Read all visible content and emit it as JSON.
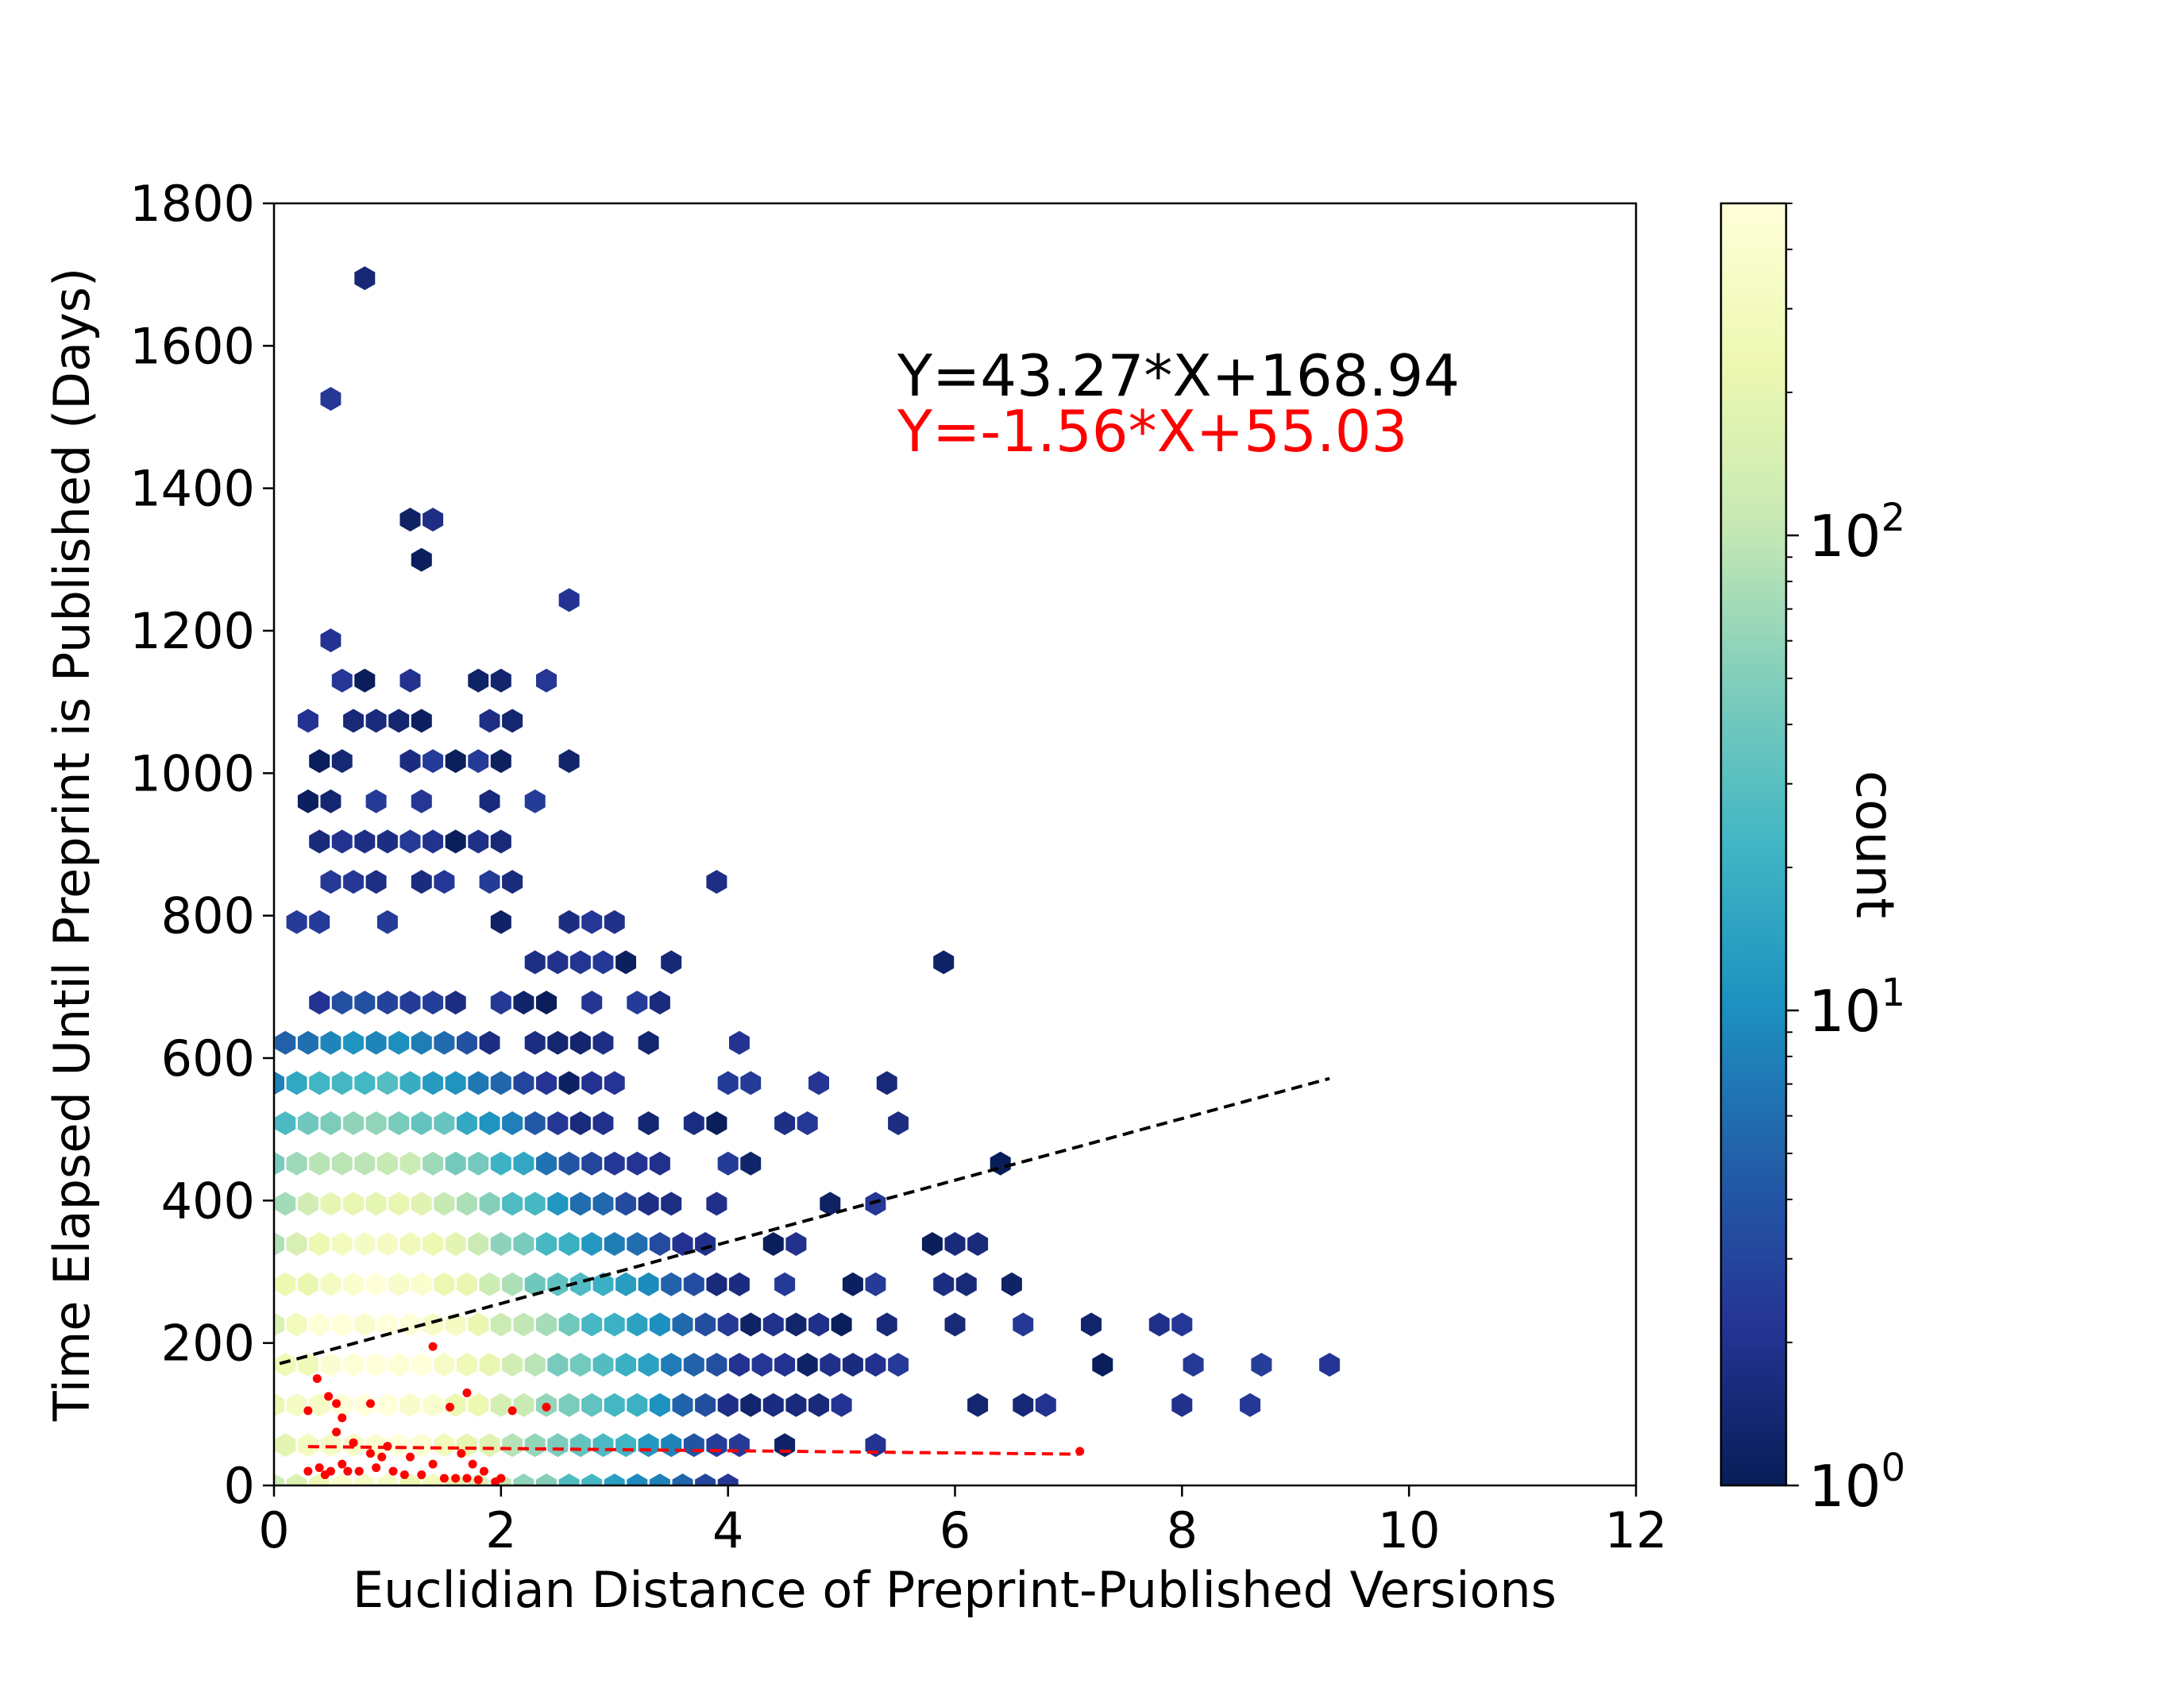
{
  "chart_data": {
    "type": "hexbin",
    "title": "",
    "xlabel": "Euclidian Distance of Preprint-Published Versions",
    "ylabel": "Time Elapsed Until Preprint is Published (Days)",
    "xlim": [
      0,
      12
    ],
    "ylim": [
      0,
      1800
    ],
    "xticks": [
      "0",
      "2",
      "4",
      "6",
      "8",
      "10",
      "12"
    ],
    "yticks": [
      "0",
      "200",
      "400",
      "600",
      "800",
      "1000",
      "1200",
      "1400",
      "1600",
      "1800"
    ],
    "grid": false,
    "colorbar": {
      "label": "count",
      "scale": "log",
      "range": [
        1,
        500
      ],
      "colormap": "YlGnBu_r",
      "stops": [
        "#081d58",
        "#253494",
        "#225ea8",
        "#1d91c0",
        "#41b6c4",
        "#7fcdbb",
        "#c7e9b4",
        "#edf8b1",
        "#ffffd9"
      ],
      "ticks": [
        {
          "base": "10",
          "exp": "0",
          "value": 1
        },
        {
          "base": "10",
          "exp": "1",
          "value": 10
        },
        {
          "base": "10",
          "exp": "2",
          "value": 100
        }
      ]
    },
    "annotations": [
      {
        "text": "Y=43.27*X+168.94",
        "color": "#000000"
      },
      {
        "text": "Y=-1.56*X+55.03",
        "color": "#ff0000"
      }
    ],
    "fit_lines": [
      {
        "slope": 43.27,
        "intercept": 168.94,
        "x_range": [
          0.05,
          9.3
        ],
        "color": "#000000",
        "style": "dashed"
      },
      {
        "slope": -1.56,
        "intercept": 55.03,
        "x_range": [
          0.3,
          7.1
        ],
        "color": "#ff0000",
        "style": "dashed"
      }
    ],
    "density_clusters": [
      {
        "center": [
          0.85,
          170
        ],
        "spread": [
          0.6,
          160
        ],
        "peak": 500
      },
      {
        "center": [
          1.6,
          130
        ],
        "spread": [
          0.9,
          140
        ],
        "peak": 80
      }
    ],
    "scatter_series": [
      {
        "color": "#ff0000",
        "points": [
          [
            0.38,
            150
          ],
          [
            0.48,
            125
          ],
          [
            0.55,
            115
          ],
          [
            0.85,
            115
          ],
          [
            1.4,
            195
          ],
          [
            1.55,
            110
          ],
          [
            1.7,
            130
          ],
          [
            2.1,
            105
          ],
          [
            2.4,
            110
          ],
          [
            0.6,
            95
          ],
          [
            0.3,
            105
          ],
          [
            0.55,
            75
          ],
          [
            0.7,
            60
          ],
          [
            0.85,
            45
          ],
          [
            1.0,
            55
          ],
          [
            0.95,
            40
          ],
          [
            1.2,
            40
          ],
          [
            1.4,
            30
          ],
          [
            1.65,
            45
          ],
          [
            1.75,
            30
          ],
          [
            1.85,
            20
          ],
          [
            0.3,
            20
          ],
          [
            0.4,
            25
          ],
          [
            0.45,
            15
          ],
          [
            0.5,
            20
          ],
          [
            0.6,
            30
          ],
          [
            0.65,
            20
          ],
          [
            0.75,
            20
          ],
          [
            0.9,
            25
          ],
          [
            1.05,
            20
          ],
          [
            1.15,
            15
          ],
          [
            1.3,
            15
          ],
          [
            1.5,
            10
          ],
          [
            1.6,
            10
          ],
          [
            1.7,
            10
          ],
          [
            1.8,
            8
          ],
          [
            1.95,
            5
          ],
          [
            2.0,
            10
          ],
          [
            7.1,
            48
          ]
        ]
      }
    ],
    "sparse_bins": [
      [
        0.8,
        1690
      ],
      [
        0.5,
        1540
      ],
      [
        1.2,
        1360
      ],
      [
        1.4,
        1360
      ],
      [
        1.1,
        1330
      ],
      [
        1.25,
        1300
      ],
      [
        2.65,
        1270
      ],
      [
        0.42,
        1210
      ],
      [
        0.5,
        1180
      ],
      [
        0.8,
        1150
      ],
      [
        1.8,
        1150
      ],
      [
        1.95,
        1150
      ],
      [
        0.25,
        1090
      ],
      [
        0.5,
        1120
      ],
      [
        1.1,
        1120
      ],
      [
        1.2,
        1090
      ],
      [
        1.95,
        1090
      ],
      [
        2.1,
        1090
      ],
      [
        2.4,
        1120
      ],
      [
        0.45,
        1030
      ],
      [
        0.6,
        1030
      ],
      [
        0.7,
        1060
      ],
      [
        0.9,
        1060
      ],
      [
        1.05,
        1060
      ],
      [
        1.2,
        1030
      ],
      [
        1.4,
        1060
      ],
      [
        1.6,
        1030
      ],
      [
        1.75,
        1030
      ],
      [
        1.95,
        1030
      ],
      [
        0.7,
        1000
      ],
      [
        1.3,
        1000
      ],
      [
        2.05,
        1000
      ],
      [
        2.55,
        1000
      ],
      [
        0.35,
        940
      ],
      [
        0.55,
        940
      ],
      [
        0.95,
        940
      ],
      [
        1.25,
        940
      ],
      [
        1.85,
        940
      ],
      [
        2.3,
        940
      ],
      [
        2.4,
        940
      ],
      [
        2.35,
        970
      ],
      [
        0.45,
        905
      ],
      [
        0.6,
        905
      ],
      [
        0.8,
        905
      ],
      [
        0.95,
        905
      ],
      [
        1.05,
        905
      ],
      [
        1.35,
        905
      ],
      [
        1.45,
        905
      ],
      [
        1.55,
        905
      ],
      [
        1.65,
        905
      ],
      [
        1.15,
        905
      ],
      [
        0.35,
        880
      ],
      [
        0.55,
        875
      ],
      [
        0.75,
        880
      ],
      [
        1.05,
        880
      ],
      [
        1.6,
        880
      ],
      [
        1.75,
        880
      ],
      [
        1.95,
        880
      ],
      [
        0.4,
        840
      ],
      [
        0.6,
        845
      ],
      [
        0.95,
        845
      ],
      [
        1.3,
        840
      ],
      [
        1.55,
        845
      ],
      [
        1.95,
        845
      ],
      [
        3.95,
        845
      ],
      [
        2.1,
        845
      ],
      [
        2.55,
        790
      ],
      [
        2.85,
        815
      ],
      [
        3.0,
        790
      ],
      [
        0.3,
        790
      ],
      [
        0.45,
        790
      ],
      [
        0.95,
        790
      ],
      [
        2.0,
        790
      ],
      [
        2.5,
        760
      ],
      [
        2.65,
        760
      ],
      [
        3.5,
        760
      ],
      [
        2.4,
        730
      ],
      [
        2.6,
        730
      ],
      [
        2.85,
        760
      ],
      [
        3.0,
        760
      ],
      [
        3.05,
        730
      ],
      [
        5.8,
        725
      ],
      [
        2.0,
        700
      ],
      [
        2.2,
        700
      ],
      [
        2.45,
        700
      ],
      [
        2.9,
        695
      ],
      [
        2.15,
        670
      ],
      [
        2.3,
        660
      ],
      [
        2.55,
        640
      ],
      [
        3.25,
        665
      ],
      [
        3.4,
        665
      ],
      [
        3.35,
        635
      ],
      [
        2.2,
        640
      ],
      [
        2.7,
        640
      ],
      [
        2.35,
        610
      ],
      [
        2.8,
        610
      ],
      [
        2.95,
        610
      ],
      [
        3.0,
        580
      ],
      [
        2.75,
        580
      ],
      [
        4.0,
        610
      ],
      [
        4.25,
        575
      ],
      [
        4.8,
        575
      ],
      [
        5.35,
        575
      ],
      [
        2.45,
        550
      ],
      [
        2.65,
        550
      ],
      [
        2.85,
        525
      ],
      [
        3.35,
        520
      ],
      [
        3.65,
        520
      ],
      [
        3.85,
        520
      ],
      [
        3.9,
        545
      ],
      [
        4.55,
        520
      ],
      [
        4.7,
        510
      ],
      [
        4.7,
        485
      ],
      [
        5.45,
        485
      ],
      [
        3.2,
        480
      ],
      [
        3.35,
        450
      ],
      [
        2.85,
        450
      ],
      [
        4.05,
        450
      ],
      [
        4.25,
        450
      ],
      [
        6.35,
        455
      ],
      [
        2.95,
        420
      ],
      [
        3.1,
        420
      ],
      [
        4.95,
        420
      ],
      [
        3.25,
        390
      ],
      [
        3.55,
        390
      ],
      [
        3.9,
        395
      ],
      [
        5.35,
        395
      ],
      [
        3.05,
        360
      ],
      [
        3.35,
        360
      ],
      [
        3.55,
        360
      ],
      [
        4.35,
        365
      ],
      [
        4.55,
        360
      ],
      [
        5.85,
        330
      ],
      [
        6.0,
        330
      ],
      [
        6.15,
        330
      ],
      [
        6.25,
        345
      ],
      [
        6.4,
        305
      ],
      [
        3.25,
        330
      ],
      [
        3.55,
        330
      ],
      [
        3.75,
        330
      ],
      [
        3.9,
        300
      ],
      [
        4.1,
        300
      ],
      [
        4.5,
        300
      ],
      [
        5.15,
        295
      ],
      [
        5.0,
        295
      ],
      [
        5.9,
        300
      ],
      [
        3.45,
        300
      ],
      [
        3.65,
        300
      ],
      [
        4.05,
        270
      ],
      [
        5.35,
        275
      ],
      [
        6.0,
        270
      ],
      [
        4.4,
        240
      ],
      [
        4.6,
        240
      ],
      [
        4.35,
        215
      ],
      [
        4.55,
        215
      ],
      [
        4.75,
        215
      ],
      [
        4.95,
        215
      ],
      [
        5.35,
        215
      ],
      [
        5.95,
        240
      ],
      [
        6.5,
        240
      ],
      [
        6.1,
        215
      ],
      [
        7.15,
        240
      ],
      [
        7.85,
        240
      ],
      [
        8.1,
        215
      ],
      [
        3.55,
        240
      ],
      [
        3.85,
        240
      ],
      [
        4.1,
        240
      ],
      [
        3.75,
        210
      ],
      [
        3.95,
        210
      ],
      [
        4.2,
        210
      ],
      [
        4.05,
        185
      ],
      [
        4.35,
        185
      ],
      [
        4.6,
        185
      ],
      [
        4.8,
        185
      ],
      [
        5.0,
        185
      ],
      [
        5.55,
        185
      ],
      [
        5.35,
        155
      ],
      [
        5.55,
        155
      ],
      [
        5.15,
        155
      ],
      [
        4.05,
        155
      ],
      [
        4.25,
        155
      ],
      [
        4.45,
        155
      ],
      [
        4.7,
        155
      ],
      [
        4.9,
        155
      ],
      [
        7.2,
        150
      ],
      [
        8.2,
        180
      ],
      [
        8.7,
        150
      ],
      [
        9.3,
        180
      ],
      [
        3.65,
        150
      ],
      [
        3.85,
        150
      ],
      [
        4.1,
        125
      ],
      [
        4.3,
        125
      ],
      [
        4.5,
        125
      ],
      [
        4.65,
        125
      ],
      [
        4.85,
        125
      ],
      [
        5.1,
        125
      ],
      [
        6.3,
        120
      ],
      [
        6.5,
        120
      ],
      [
        6.7,
        120
      ],
      [
        8.05,
        120
      ],
      [
        4.35,
        95
      ],
      [
        4.55,
        95
      ],
      [
        4.95,
        95
      ],
      [
        3.5,
        95
      ],
      [
        3.75,
        95
      ],
      [
        3.55,
        65
      ],
      [
        3.8,
        65
      ],
      [
        3.35,
        65
      ],
      [
        4.5,
        65
      ],
      [
        5.3,
        60
      ],
      [
        8.5,
        90
      ],
      [
        3.35,
        40
      ],
      [
        2.85,
        40
      ],
      [
        2.9,
        15
      ],
      [
        3.1,
        40
      ],
      [
        3.25,
        15
      ],
      [
        3.45,
        15
      ],
      [
        4.0,
        40
      ],
      [
        3.9,
        15
      ],
      [
        2.6,
        15
      ],
      [
        2.35,
        15
      ],
      [
        2.15,
        15
      ]
    ]
  }
}
